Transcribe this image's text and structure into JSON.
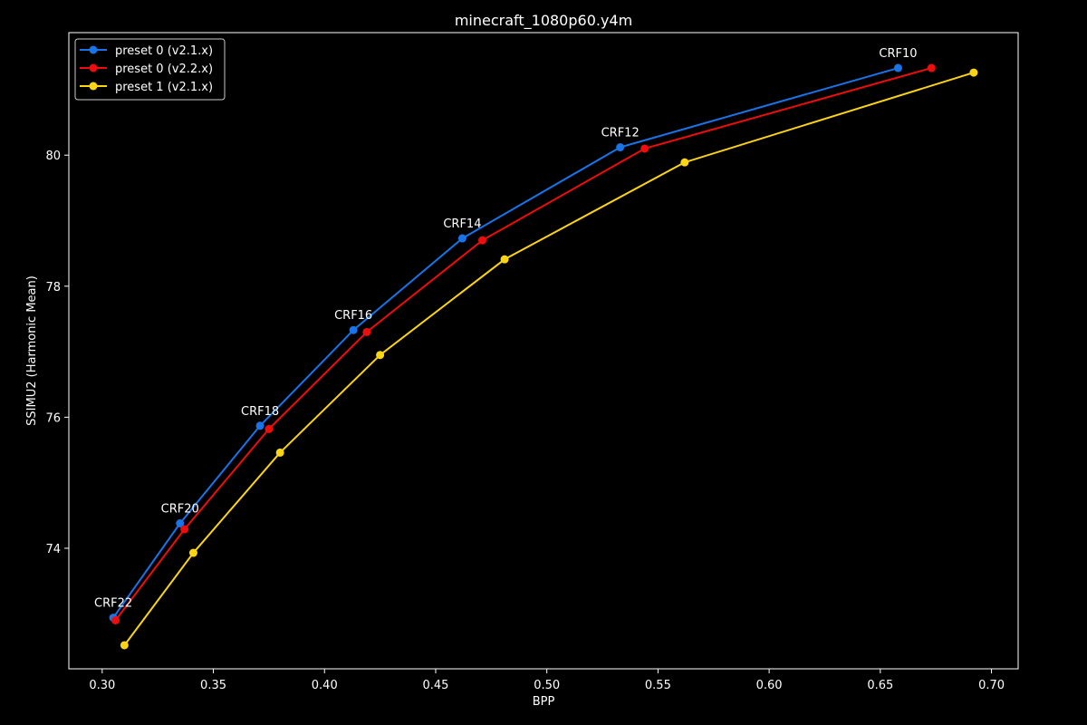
{
  "chart_data": {
    "type": "line",
    "title": "minecraft_1080p60.y4m",
    "xlabel": "BPP",
    "ylabel": "SSIMU2 (Harmonic Mean)",
    "xlim": [
      0.285,
      0.712
    ],
    "ylim": [
      72.16,
      81.87
    ],
    "xticks": [
      "0.30",
      "0.35",
      "0.40",
      "0.45",
      "0.50",
      "0.55",
      "0.60",
      "0.65",
      "0.70"
    ],
    "yticks": [
      "74",
      "76",
      "78",
      "80"
    ],
    "grid": false,
    "legend_position": "top-left",
    "series": [
      {
        "name": "preset 0 (v2.1.x)",
        "color": "#1874e8",
        "points": [
          {
            "x": 0.305,
            "y": 72.94
          },
          {
            "x": 0.335,
            "y": 74.38
          },
          {
            "x": 0.371,
            "y": 75.87
          },
          {
            "x": 0.413,
            "y": 77.33
          },
          {
            "x": 0.462,
            "y": 78.73
          },
          {
            "x": 0.533,
            "y": 80.12
          },
          {
            "x": 0.658,
            "y": 81.33
          }
        ]
      },
      {
        "name": "preset 0 (v2.2.x)",
        "color": "#ee0d0d",
        "points": [
          {
            "x": 0.306,
            "y": 72.9
          },
          {
            "x": 0.337,
            "y": 74.29
          },
          {
            "x": 0.375,
            "y": 75.82
          },
          {
            "x": 0.419,
            "y": 77.3
          },
          {
            "x": 0.471,
            "y": 78.7
          },
          {
            "x": 0.544,
            "y": 80.1
          },
          {
            "x": 0.673,
            "y": 81.33
          }
        ]
      },
      {
        "name": "preset 1 (v2.1.x)",
        "color": "#fbd414",
        "points": [
          {
            "x": 0.31,
            "y": 72.52
          },
          {
            "x": 0.341,
            "y": 73.93
          },
          {
            "x": 0.38,
            "y": 75.46
          },
          {
            "x": 0.425,
            "y": 76.95
          },
          {
            "x": 0.481,
            "y": 78.41
          },
          {
            "x": 0.562,
            "y": 79.89
          },
          {
            "x": 0.692,
            "y": 81.26
          }
        ]
      }
    ],
    "annotations": [
      {
        "text": "CRF22",
        "x": 0.305,
        "y": 72.94
      },
      {
        "text": "CRF20",
        "x": 0.335,
        "y": 74.38
      },
      {
        "text": "CRF18",
        "x": 0.371,
        "y": 75.87
      },
      {
        "text": "CRF16",
        "x": 0.413,
        "y": 77.33
      },
      {
        "text": "CRF14",
        "x": 0.462,
        "y": 78.73
      },
      {
        "text": "CRF12",
        "x": 0.533,
        "y": 80.12
      },
      {
        "text": "CRF10",
        "x": 0.658,
        "y": 81.33
      }
    ],
    "colors": {
      "background": "#000000",
      "axes": "#ffffff",
      "text": "#ffffff"
    }
  }
}
